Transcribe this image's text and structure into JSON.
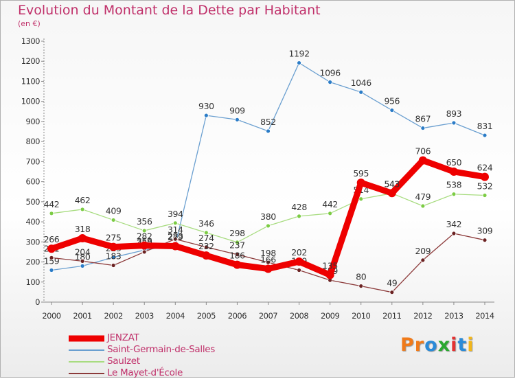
{
  "header": {
    "title": "Evolution du Montant de la Dette par Habitant",
    "subtitle": "(en €)"
  },
  "logo": {
    "letters": [
      "P",
      "r",
      "o",
      "x",
      "i",
      "t",
      "i"
    ],
    "colors": [
      "#f07a1a",
      "#f07a1a",
      "#2a8bd8",
      "#2aa830",
      "#e43232",
      "#2a8bd8",
      "#f2b61a"
    ]
  },
  "chart_data": {
    "type": "line",
    "title": "Evolution du Montant de la Dette par Habitant",
    "subtitle": "(en €)",
    "xlabel": "",
    "ylabel": "",
    "x": [
      "2000",
      "2001",
      "2002",
      "2003",
      "2004",
      "2005",
      "2006",
      "2007",
      "2008",
      "2009",
      "2010",
      "2011",
      "2012",
      "2013",
      "2014"
    ],
    "ylim": [
      0,
      1300
    ],
    "yticks": [
      0,
      100,
      200,
      300,
      400,
      500,
      600,
      700,
      800,
      900,
      1000,
      1100,
      1200,
      1300
    ],
    "grid": false,
    "legend_position": "bottom-left",
    "series": [
      {
        "name": "Saint-Germain-de-Salles",
        "color": "#6a9fd0",
        "marker": "#2b7cc7",
        "values": [
          159,
          180,
          223,
          259,
          283,
          930,
          909,
          852,
          1192,
          1096,
          1046,
          956,
          867,
          893,
          831
        ]
      },
      {
        "name": "Saulzet",
        "color": "#a8dc80",
        "marker": "#7ccc44",
        "values": [
          442,
          462,
          409,
          356,
          394,
          346,
          298,
          380,
          428,
          442,
          514,
          542,
          479,
          538,
          532
        ]
      },
      {
        "name": "Le Mayet-d'École",
        "color": "#8c3a3a",
        "marker": "#6b2222",
        "values": [
          221,
          204,
          183,
          250,
          314,
          274,
          237,
          198,
          159,
          109,
          80,
          49,
          209,
          342,
          309
        ]
      },
      {
        "name": "JENZAT",
        "color": "#ee0000",
        "marker": "#ee0000",
        "bold": true,
        "values": [
          266,
          318,
          275,
          282,
          279,
          232,
          186,
          166,
          202,
          135,
          595,
          543,
          706,
          650,
          624
        ]
      }
    ]
  }
}
